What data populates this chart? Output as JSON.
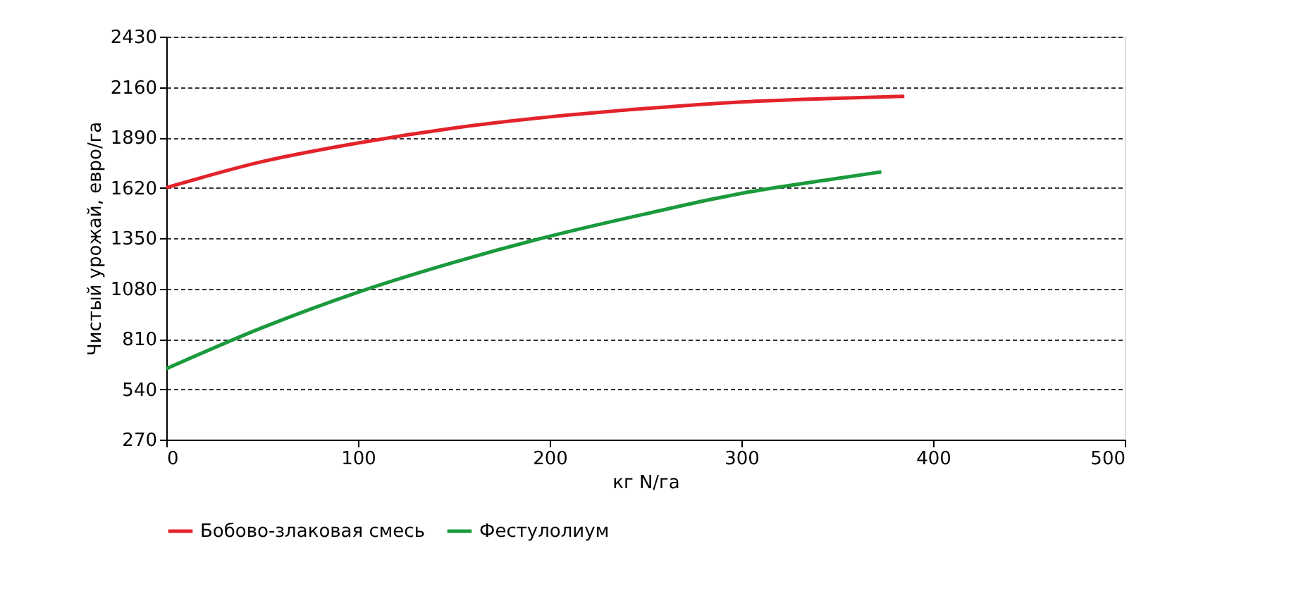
{
  "chart_data": {
    "type": "line",
    "xlabel": "кг N/га",
    "ylabel": "Чистый урожай, евро/га",
    "xlim": [
      0,
      500
    ],
    "xticks": [
      0,
      100,
      200,
      300,
      400,
      500
    ],
    "ylim": [
      270,
      2430
    ],
    "yticks": [
      270,
      540,
      810,
      1080,
      1350,
      1620,
      1890,
      2160,
      2430
    ],
    "grid": "y",
    "legend": "bottom",
    "marker": "none",
    "line_style": "solid",
    "series": [
      {
        "name": "Бобово-злаковая смесь",
        "color": "#e3232b",
        "x": [
          0,
          50,
          100,
          150,
          200,
          250,
          300,
          350,
          385
        ],
        "values": [
          1620,
          1760,
          1860,
          1940,
          2000,
          2045,
          2080,
          2100,
          2110
        ]
      },
      {
        "name": "Фестулолиум",
        "color": "#1a9a3c",
        "x": [
          0,
          50,
          100,
          150,
          200,
          250,
          300,
          350,
          373
        ],
        "values": [
          650,
          870,
          1060,
          1220,
          1360,
          1480,
          1590,
          1670,
          1705
        ]
      }
    ]
  }
}
